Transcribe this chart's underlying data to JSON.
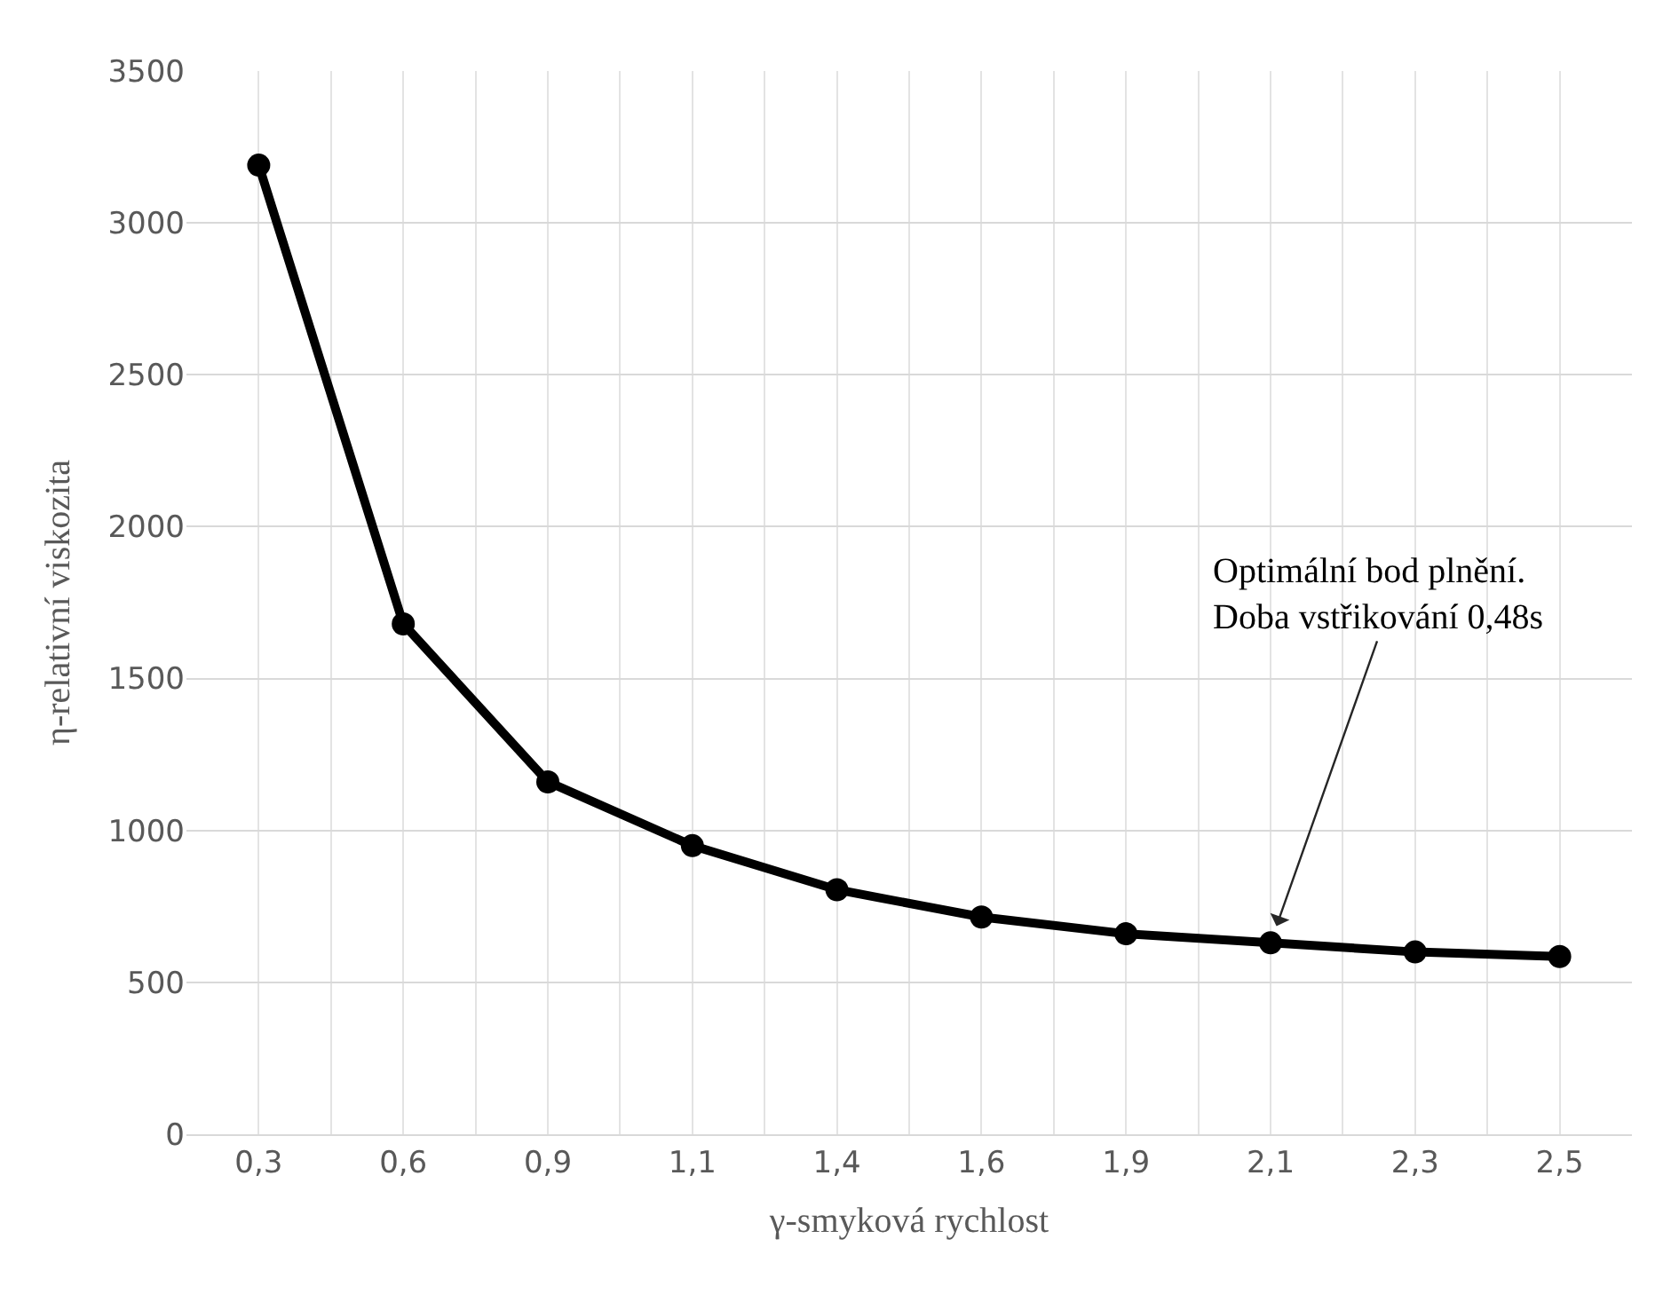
{
  "chart_data": {
    "type": "line",
    "xlabel": "γ-smyková rychlost",
    "ylabel": "η-relativní viskozita",
    "categories": [
      "0,3",
      "0,6",
      "0,9",
      "1,1",
      "1,4",
      "1,6",
      "1,9",
      "2,1",
      "2,3",
      "2,5"
    ],
    "series": [
      {
        "color": "#000000",
        "values": [
          3190,
          1680,
          1160,
          950,
          805,
          715,
          660,
          630,
          600,
          585
        ]
      }
    ],
    "ylim": [
      0,
      3500
    ],
    "yticks": [
      0,
      500,
      1000,
      1500,
      2000,
      2500,
      3000,
      3500
    ],
    "grid": true,
    "marker": "circle",
    "line_style": "solid",
    "annotations": [
      {
        "text": "Optimální bod plnění.\nDoba vstřikování 0,48s",
        "x": "2,1",
        "y": 630
      }
    ]
  }
}
